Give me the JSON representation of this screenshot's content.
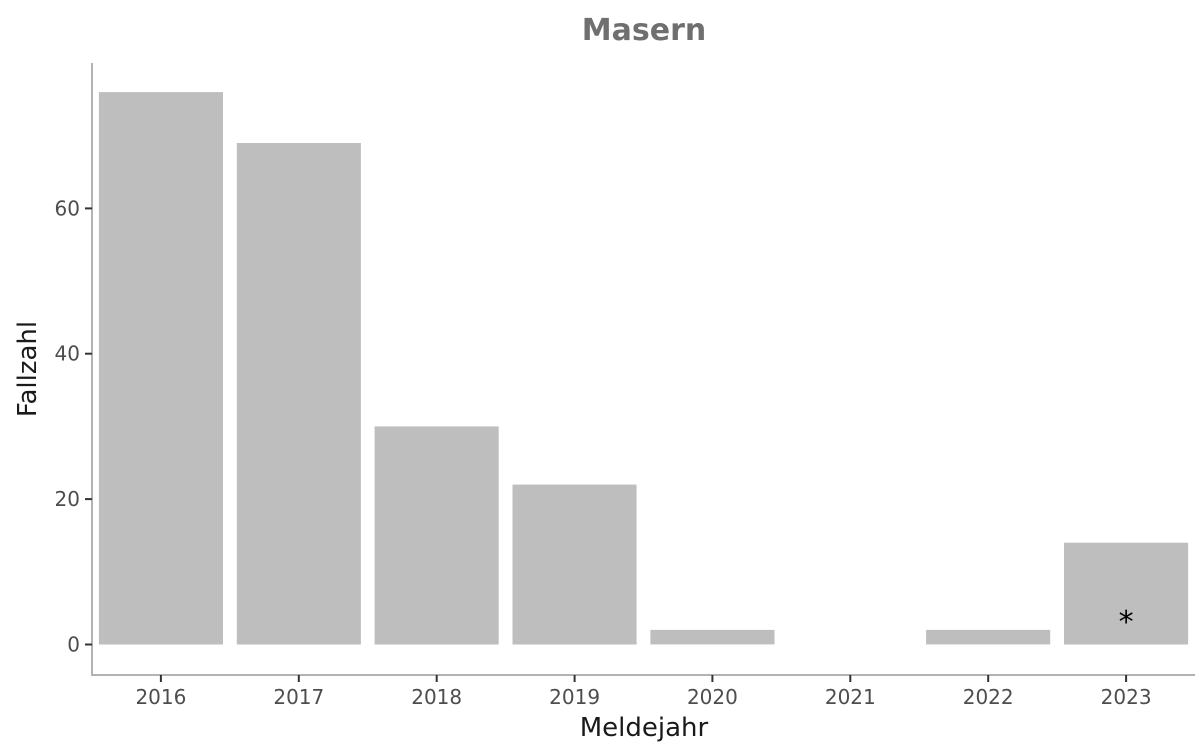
{
  "colors": {
    "bar": "#bebebe",
    "axis": "#b3b3b3",
    "title": "#6f6f6f"
  },
  "chart_data": {
    "type": "bar",
    "title": "Masern",
    "xlabel": "Meldejahr",
    "ylabel": "Fallzahl",
    "categories": [
      "2016",
      "2017",
      "2018",
      "2019",
      "2020",
      "2021",
      "2022",
      "2023"
    ],
    "values": [
      76,
      69,
      30,
      22,
      2,
      0,
      2,
      14
    ],
    "ylim": [
      -4.2,
      80
    ],
    "yticks": [
      0,
      20,
      40,
      60
    ],
    "yticklabels": [
      "0",
      "20",
      "40",
      "60"
    ],
    "grid": false,
    "legend": "none",
    "annotations": [
      {
        "category": "2023",
        "y": 4.5,
        "text": "*"
      }
    ]
  }
}
